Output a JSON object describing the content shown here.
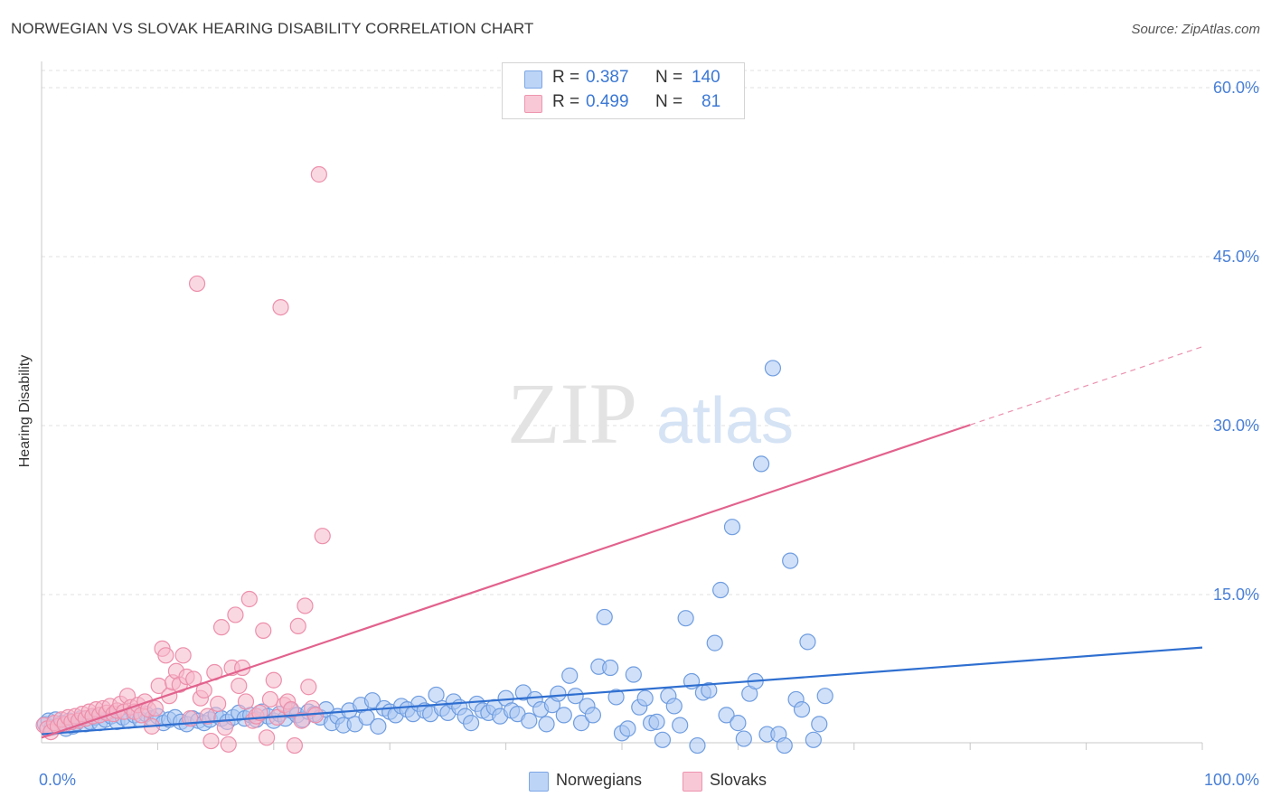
{
  "title": "NORWEGIAN VS SLOVAK HEARING DISABILITY CORRELATION CHART",
  "source": "Source: ZipAtlas.com",
  "watermark": {
    "zip": "ZIP",
    "atlas": "atlas"
  },
  "stats": [
    {
      "r_label": "R =",
      "r_value": "0.387",
      "n_label": "N =",
      "n_value": "140",
      "fill": "#bcd4f6",
      "stroke": "#7ea7e6"
    },
    {
      "r_label": "R =",
      "r_value": "0.499",
      "n_label": "N =",
      "n_value": "81",
      "fill": "#f8c8d6",
      "stroke": "#ee95b0"
    }
  ],
  "legend": [
    {
      "label": "Norwegians",
      "fill": "#bcd4f6",
      "stroke": "#7ea7e6"
    },
    {
      "label": "Slovaks",
      "fill": "#f8c8d6",
      "stroke": "#ee95b0"
    }
  ],
  "chart_data": {
    "type": "scatter",
    "ylabel": "Hearing Disability",
    "xlabel": "",
    "xlim": [
      0,
      100
    ],
    "ylim": [
      0,
      62
    ],
    "x_tick_labels": [
      {
        "value": 0,
        "label": "0.0%"
      },
      {
        "value": 100,
        "label": "100.0%"
      }
    ],
    "x_minor_ticks": [
      10,
      20,
      30,
      40,
      50,
      60,
      70,
      80,
      90,
      100
    ],
    "y_ticks": [
      {
        "value": 15,
        "label": "15.0%"
      },
      {
        "value": 30,
        "label": "30.0%"
      },
      {
        "value": 45,
        "label": "45.0%"
      },
      {
        "value": 60,
        "label": "60.0%"
      }
    ],
    "colors": {
      "Norwegians": {
        "fill": "#a9c7f2",
        "stroke": "#6f9de0",
        "line": "#2f6fd0"
      },
      "Slovaks": {
        "fill": "#f6b8cb",
        "stroke": "#ec8fab",
        "line": "#e2628d"
      }
    },
    "series": [
      {
        "name": "Norwegians",
        "points": [
          [
            0.3,
            3.5
          ],
          [
            0.6,
            3.8
          ],
          [
            0.9,
            3.2
          ],
          [
            1.2,
            3.9
          ],
          [
            1.5,
            3.4
          ],
          [
            1.8,
            3.6
          ],
          [
            2.1,
            3.1
          ],
          [
            2.4,
            3.8
          ],
          [
            2.7,
            3.3
          ],
          [
            3.0,
            3.6
          ],
          [
            3.4,
            4.0
          ],
          [
            3.8,
            3.5
          ],
          [
            4.2,
            3.7
          ],
          [
            4.6,
            4.1
          ],
          [
            5.0,
            3.6
          ],
          [
            5.5,
            3.9
          ],
          [
            6.0,
            4.2
          ],
          [
            6.5,
            3.7
          ],
          [
            7.0,
            4.1
          ],
          [
            7.5,
            3.8
          ],
          [
            8.0,
            4.3
          ],
          [
            8.5,
            3.9
          ],
          [
            9.0,
            4.4
          ],
          [
            9.5,
            4.0
          ],
          [
            10.0,
            4.2
          ],
          [
            10.5,
            3.6
          ],
          [
            11.0,
            3.9
          ],
          [
            11.5,
            4.1
          ],
          [
            12.0,
            3.7
          ],
          [
            12.5,
            3.5
          ],
          [
            13.0,
            4.0
          ],
          [
            13.5,
            3.8
          ],
          [
            14.0,
            3.6
          ],
          [
            14.5,
            3.9
          ],
          [
            15.0,
            4.3
          ],
          [
            15.5,
            4.0
          ],
          [
            16.0,
            3.7
          ],
          [
            16.5,
            4.1
          ],
          [
            17.0,
            4.5
          ],
          [
            17.5,
            4.0
          ],
          [
            18.0,
            4.3
          ],
          [
            18.5,
            3.9
          ],
          [
            19.0,
            4.6
          ],
          [
            19.5,
            4.2
          ],
          [
            20.0,
            3.8
          ],
          [
            20.5,
            4.4
          ],
          [
            21.0,
            4.0
          ],
          [
            21.5,
            4.7
          ],
          [
            22.0,
            4.3
          ],
          [
            22.5,
            3.9
          ],
          [
            23.0,
            4.6
          ],
          [
            23.5,
            4.4
          ],
          [
            24.0,
            4.1
          ],
          [
            24.5,
            4.8
          ],
          [
            25.0,
            3.6
          ],
          [
            25.5,
            4.2
          ],
          [
            26.0,
            3.4
          ],
          [
            26.5,
            4.7
          ],
          [
            27.0,
            3.5
          ],
          [
            27.5,
            5.2
          ],
          [
            28.0,
            4.1
          ],
          [
            28.5,
            5.6
          ],
          [
            29.0,
            3.3
          ],
          [
            29.5,
            4.9
          ],
          [
            30.0,
            4.6
          ],
          [
            30.5,
            4.3
          ],
          [
            31.0,
            5.1
          ],
          [
            31.5,
            4.8
          ],
          [
            32.0,
            4.4
          ],
          [
            32.5,
            5.3
          ],
          [
            33.0,
            4.7
          ],
          [
            33.5,
            4.4
          ],
          [
            34.0,
            6.1
          ],
          [
            34.5,
            4.9
          ],
          [
            35.0,
            4.5
          ],
          [
            35.5,
            5.5
          ],
          [
            36.0,
            5.0
          ],
          [
            36.5,
            4.2
          ],
          [
            37.0,
            3.6
          ],
          [
            37.5,
            5.3
          ],
          [
            38.0,
            4.7
          ],
          [
            38.5,
            4.5
          ],
          [
            39.0,
            5.0
          ],
          [
            39.5,
            4.2
          ],
          [
            40.0,
            5.8
          ],
          [
            40.5,
            4.7
          ],
          [
            41.0,
            4.4
          ],
          [
            41.5,
            6.3
          ],
          [
            42.0,
            3.8
          ],
          [
            42.5,
            5.7
          ],
          [
            43.0,
            4.8
          ],
          [
            43.5,
            3.5
          ],
          [
            44.0,
            5.2
          ],
          [
            44.5,
            6.2
          ],
          [
            45.0,
            4.3
          ],
          [
            45.5,
            7.8
          ],
          [
            46.0,
            6.0
          ],
          [
            46.5,
            3.6
          ],
          [
            47.0,
            5.1
          ],
          [
            47.5,
            4.3
          ],
          [
            48.0,
            8.6
          ],
          [
            48.5,
            13.0
          ],
          [
            49.0,
            8.5
          ],
          [
            49.5,
            5.9
          ],
          [
            50.0,
            2.7
          ],
          [
            50.5,
            3.1
          ],
          [
            51.0,
            7.9
          ],
          [
            51.5,
            5.0
          ],
          [
            52.0,
            5.8
          ],
          [
            52.5,
            3.6
          ],
          [
            53.0,
            3.7
          ],
          [
            53.5,
            2.1
          ],
          [
            54.0,
            6.0
          ],
          [
            54.5,
            5.1
          ],
          [
            55.0,
            3.4
          ],
          [
            55.5,
            12.9
          ],
          [
            56.0,
            7.3
          ],
          [
            56.5,
            1.6
          ],
          [
            57.0,
            6.3
          ],
          [
            57.5,
            6.5
          ],
          [
            58.0,
            10.7
          ],
          [
            58.5,
            15.4
          ],
          [
            59.0,
            4.3
          ],
          [
            59.5,
            21.0
          ],
          [
            60.0,
            3.6
          ],
          [
            60.5,
            2.2
          ],
          [
            61.0,
            6.2
          ],
          [
            61.5,
            7.3
          ],
          [
            62.0,
            26.6
          ],
          [
            62.5,
            2.6
          ],
          [
            63.0,
            35.1
          ],
          [
            63.5,
            2.6
          ],
          [
            64.0,
            1.6
          ],
          [
            64.5,
            18.0
          ],
          [
            65.0,
            5.7
          ],
          [
            65.5,
            4.8
          ],
          [
            66.0,
            10.8
          ],
          [
            66.5,
            2.1
          ],
          [
            67.0,
            3.5
          ],
          [
            67.5,
            6.0
          ]
        ],
        "fit": {
          "x1": 0,
          "y1": 2.6,
          "x2": 100,
          "y2": 10.3,
          "dashed_from": null
        }
      },
      {
        "name": "Slovaks",
        "points": [
          [
            0.2,
            3.4
          ],
          [
            0.5,
            3.1
          ],
          [
            0.8,
            2.8
          ],
          [
            1.1,
            3.6
          ],
          [
            1.4,
            3.3
          ],
          [
            1.7,
            3.9
          ],
          [
            2.0,
            3.5
          ],
          [
            2.3,
            4.1
          ],
          [
            2.6,
            3.7
          ],
          [
            2.9,
            4.2
          ],
          [
            3.2,
            3.8
          ],
          [
            3.5,
            4.4
          ],
          [
            3.8,
            4.0
          ],
          [
            4.1,
            4.6
          ],
          [
            4.4,
            4.2
          ],
          [
            4.7,
            4.8
          ],
          [
            5.0,
            4.3
          ],
          [
            5.3,
            4.9
          ],
          [
            5.6,
            4.5
          ],
          [
            5.9,
            5.1
          ],
          [
            6.2,
            4.4
          ],
          [
            6.5,
            4.7
          ],
          [
            6.8,
            5.3
          ],
          [
            7.1,
            4.6
          ],
          [
            7.4,
            6.0
          ],
          [
            7.7,
            5.0
          ],
          [
            8.0,
            4.6
          ],
          [
            8.3,
            5.2
          ],
          [
            8.6,
            4.3
          ],
          [
            8.9,
            5.5
          ],
          [
            9.2,
            4.8
          ],
          [
            9.5,
            3.3
          ],
          [
            9.8,
            4.9
          ],
          [
            10.1,
            6.9
          ],
          [
            10.4,
            10.2
          ],
          [
            10.7,
            9.6
          ],
          [
            11.0,
            6.0
          ],
          [
            11.3,
            7.2
          ],
          [
            11.6,
            8.2
          ],
          [
            11.9,
            7.0
          ],
          [
            12.2,
            9.6
          ],
          [
            12.5,
            7.7
          ],
          [
            12.8,
            4.0
          ],
          [
            13.1,
            7.5
          ],
          [
            13.4,
            42.6
          ],
          [
            13.7,
            5.8
          ],
          [
            14.0,
            6.5
          ],
          [
            14.3,
            4.2
          ],
          [
            14.6,
            2.0
          ],
          [
            14.9,
            8.1
          ],
          [
            15.2,
            5.3
          ],
          [
            15.5,
            12.1
          ],
          [
            15.8,
            3.2
          ],
          [
            16.1,
            1.7
          ],
          [
            16.4,
            8.5
          ],
          [
            16.7,
            13.2
          ],
          [
            17.0,
            6.9
          ],
          [
            17.3,
            8.5
          ],
          [
            17.6,
            5.5
          ],
          [
            17.9,
            14.6
          ],
          [
            18.2,
            3.8
          ],
          [
            18.5,
            4.2
          ],
          [
            18.8,
            4.5
          ],
          [
            19.1,
            11.8
          ],
          [
            19.4,
            2.3
          ],
          [
            19.7,
            5.7
          ],
          [
            20.0,
            7.4
          ],
          [
            20.3,
            4.1
          ],
          [
            20.6,
            40.5
          ],
          [
            20.9,
            5.2
          ],
          [
            21.2,
            5.5
          ],
          [
            21.5,
            4.8
          ],
          [
            21.8,
            1.6
          ],
          [
            22.1,
            12.2
          ],
          [
            22.4,
            3.8
          ],
          [
            22.7,
            14.0
          ],
          [
            23.0,
            6.8
          ],
          [
            23.3,
            4.9
          ],
          [
            23.6,
            4.3
          ],
          [
            23.9,
            52.3
          ],
          [
            24.2,
            20.2
          ]
        ],
        "fit": {
          "x1": 0,
          "y1": 2.3,
          "x2": 100,
          "y2": 37.0,
          "dashed_from": 80
        }
      }
    ]
  }
}
